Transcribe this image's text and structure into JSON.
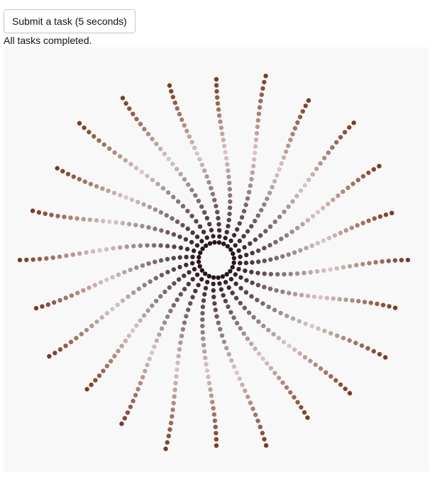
{
  "toolbar": {
    "submit_label": "Submit a task (5 seconds)"
  },
  "status": {
    "text": "All tasks completed."
  },
  "visualization": {
    "ray_count": 24,
    "dots_per_ray": 28,
    "colors": {
      "background": "#f9f8f8",
      "inner": "#2a1418",
      "middle": "#d9c8c8",
      "outer": "#7a3a22"
    }
  }
}
